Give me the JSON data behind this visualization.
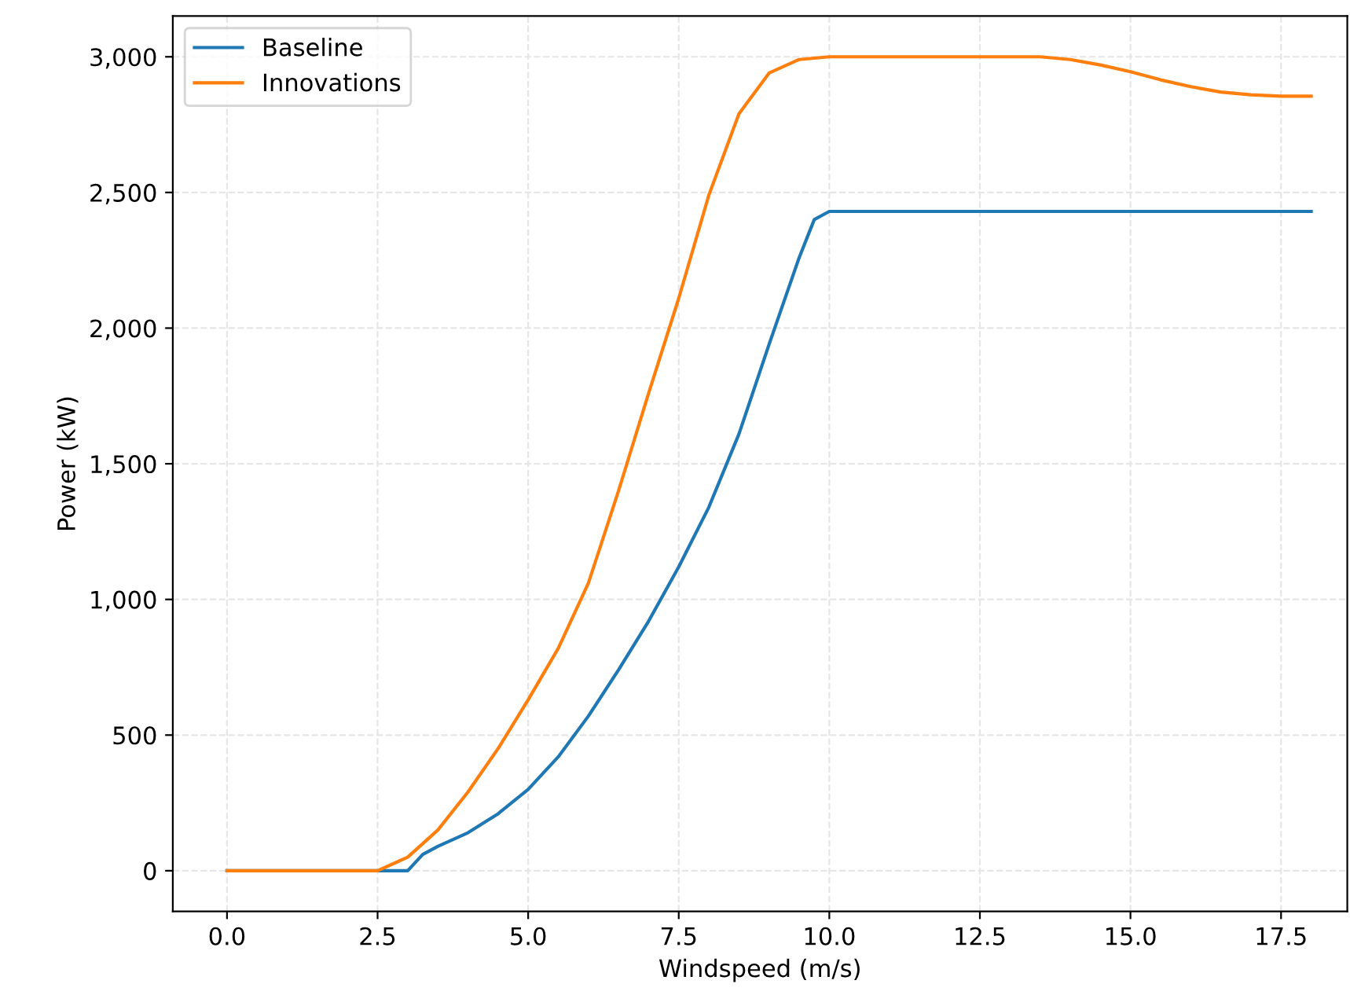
{
  "chart_data": {
    "type": "line",
    "xlabel": "Windspeed (m/s)",
    "ylabel": "Power (kW)",
    "xlim": [
      -0.9,
      18.6
    ],
    "ylim": [
      -150,
      3150
    ],
    "xticks": [
      {
        "value": 0,
        "label": "0.0"
      },
      {
        "value": 2.5,
        "label": "2.5"
      },
      {
        "value": 5,
        "label": "5.0"
      },
      {
        "value": 7.5,
        "label": "7.5"
      },
      {
        "value": 10,
        "label": "10.0"
      },
      {
        "value": 12.5,
        "label": "12.5"
      },
      {
        "value": 15,
        "label": "15.0"
      },
      {
        "value": 17.5,
        "label": "17.5"
      }
    ],
    "yticks": [
      0,
      500,
      {
        "value": 1000,
        "label": "1,000"
      },
      {
        "value": 1500,
        "label": "1,500"
      },
      {
        "value": 2000,
        "label": "2,000"
      },
      {
        "value": 2500,
        "label": "2,500"
      },
      {
        "value": 3000,
        "label": "3,000"
      }
    ],
    "grid": true,
    "legend": "top left",
    "series": [
      {
        "name": "Baseline",
        "color": "#1f77b4",
        "x": [
          0,
          2.5,
          3.0,
          3.25,
          3.5,
          4,
          4.5,
          5,
          5.5,
          6,
          6.5,
          7,
          7.5,
          8,
          8.5,
          9,
          9.5,
          9.75,
          10,
          18
        ],
        "values": [
          0,
          0,
          0,
          60,
          90,
          140,
          210,
          300,
          420,
          570,
          740,
          920,
          1120,
          1340,
          1610,
          1940,
          2260,
          2400,
          2430,
          2430
        ]
      },
      {
        "name": "Innovations",
        "color": "#ff7f0e",
        "x": [
          0,
          2.5,
          3,
          3.5,
          4,
          4.5,
          5,
          5.5,
          6,
          6.5,
          7,
          7.5,
          8,
          8.5,
          9,
          9.5,
          10,
          13.5,
          14,
          14.5,
          15,
          15.5,
          16,
          16.5,
          17,
          17.5,
          18
        ],
        "values": [
          0,
          0,
          50,
          150,
          290,
          450,
          630,
          820,
          1060,
          1400,
          1760,
          2110,
          2490,
          2790,
          2940,
          2990,
          3000,
          3000,
          2990,
          2970,
          2945,
          2915,
          2890,
          2870,
          2860,
          2855,
          2855
        ]
      }
    ]
  }
}
